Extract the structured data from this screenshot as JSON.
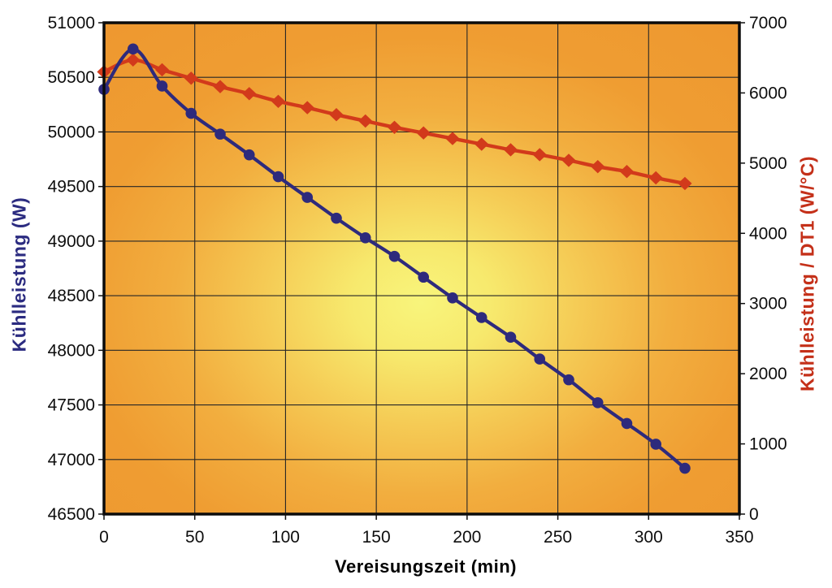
{
  "chart_data": {
    "type": "line",
    "title": "",
    "xlabel": "Vereisungszeit (min)",
    "x_axis": {
      "min": 0,
      "max": 350,
      "ticks": [
        0,
        50,
        100,
        150,
        200,
        250,
        300,
        350
      ]
    },
    "left_axis": {
      "label": "Kühlleistung (W)",
      "color": "#2b2b80",
      "min": 46500,
      "max": 51000,
      "ticks": [
        51000,
        50500,
        50000,
        49500,
        49000,
        48500,
        48000,
        47500,
        47000,
        46500
      ]
    },
    "right_axis": {
      "label": "Kühlleistung / DT1 (W/°C)",
      "color": "#c43019",
      "min": 0,
      "max": 7000,
      "ticks": [
        7000,
        6000,
        5000,
        4000,
        3000,
        2000,
        1000,
        0
      ]
    },
    "x": [
      0,
      16,
      32,
      48,
      64,
      80,
      96,
      112,
      128,
      144,
      160,
      176,
      192,
      208,
      224,
      240,
      256,
      272,
      288,
      304,
      320
    ],
    "series": [
      {
        "name": "Kühlleistung",
        "axis": "left",
        "color": "#2e2a7c",
        "marker": "circle",
        "values": [
          50390,
          50760,
          50420,
          50170,
          49980,
          49790,
          49590,
          49400,
          49210,
          49030,
          48860,
          48670,
          48480,
          48300,
          48120,
          47920,
          47730,
          47520,
          47330,
          47140,
          46920
        ]
      },
      {
        "name": "Kühlleistung / DT1",
        "axis": "right",
        "color": "#d23a1b",
        "marker": "diamond",
        "values": [
          6300,
          6470,
          6330,
          6210,
          6090,
          5990,
          5880,
          5790,
          5690,
          5600,
          5510,
          5430,
          5350,
          5270,
          5190,
          5120,
          5040,
          4950,
          4880,
          4790,
          4710
        ]
      }
    ],
    "plot": {
      "grid_color": "#262626",
      "frame_color": "#0b0b0b",
      "tick_color": "#111111",
      "gradient_stops": [
        {
          "offset": "0%",
          "color": "#f8f57c"
        },
        {
          "offset": "15%",
          "color": "#f7e96d"
        },
        {
          "offset": "33%",
          "color": "#f5cb55"
        },
        {
          "offset": "52%",
          "color": "#f2ae3f"
        },
        {
          "offset": "72%",
          "color": "#ef9d32"
        },
        {
          "offset": "100%",
          "color": "#ee9830"
        }
      ]
    },
    "legend": {
      "visible": false
    }
  }
}
